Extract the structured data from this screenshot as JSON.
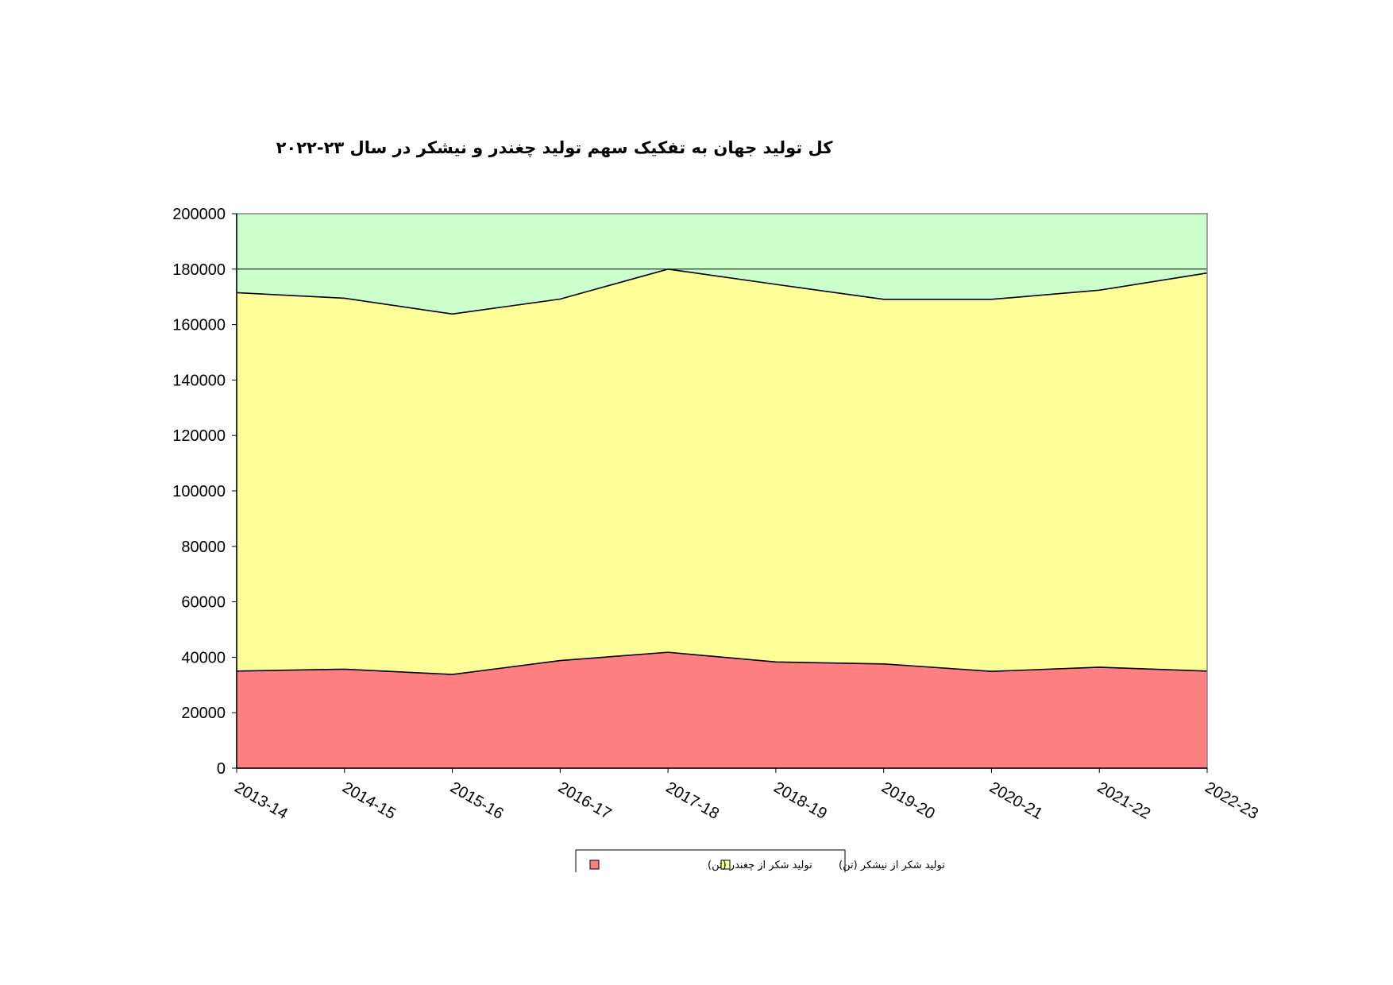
{
  "chart_data": {
    "type": "area",
    "stacked": true,
    "title": "کل تولید جهان به تفکیک سهم تولید چغندر و نیشکر در سال ۲۳-۲۰۲۲",
    "categories": [
      "2013-14",
      "2014-15",
      "2015-16",
      "2016-17",
      "2017-18",
      "2018-19",
      "2019-20",
      "2020-21",
      "2021-22",
      "2022-23"
    ],
    "ylim": [
      0,
      200000
    ],
    "yticks": [
      0,
      20000,
      40000,
      60000,
      80000,
      100000,
      120000,
      140000,
      160000,
      180000,
      200000
    ],
    "y_tick_labels": [
      "0",
      "20000",
      "40000",
      "60000",
      "80000",
      "100000",
      "120000",
      "140000",
      "160000",
      "180000",
      "200000"
    ],
    "series": [
      {
        "name": "تولید شکر از چغندر (تن)",
        "color": "#FF8080",
        "values": [
          35000,
          35700,
          33800,
          38800,
          41800,
          38300,
          37600,
          34900,
          36400,
          35000
        ]
      },
      {
        "name": "تولید شکر از نیشکر (تن)",
        "color": "#FFFF99",
        "values": [
          136500,
          133800,
          130000,
          130400,
          138200,
          136200,
          131500,
          134200,
          136000,
          143600
        ]
      }
    ],
    "plot_background": "#CCFFCC",
    "gridlines": [
      180000
    ],
    "legend_position": "bottom"
  }
}
